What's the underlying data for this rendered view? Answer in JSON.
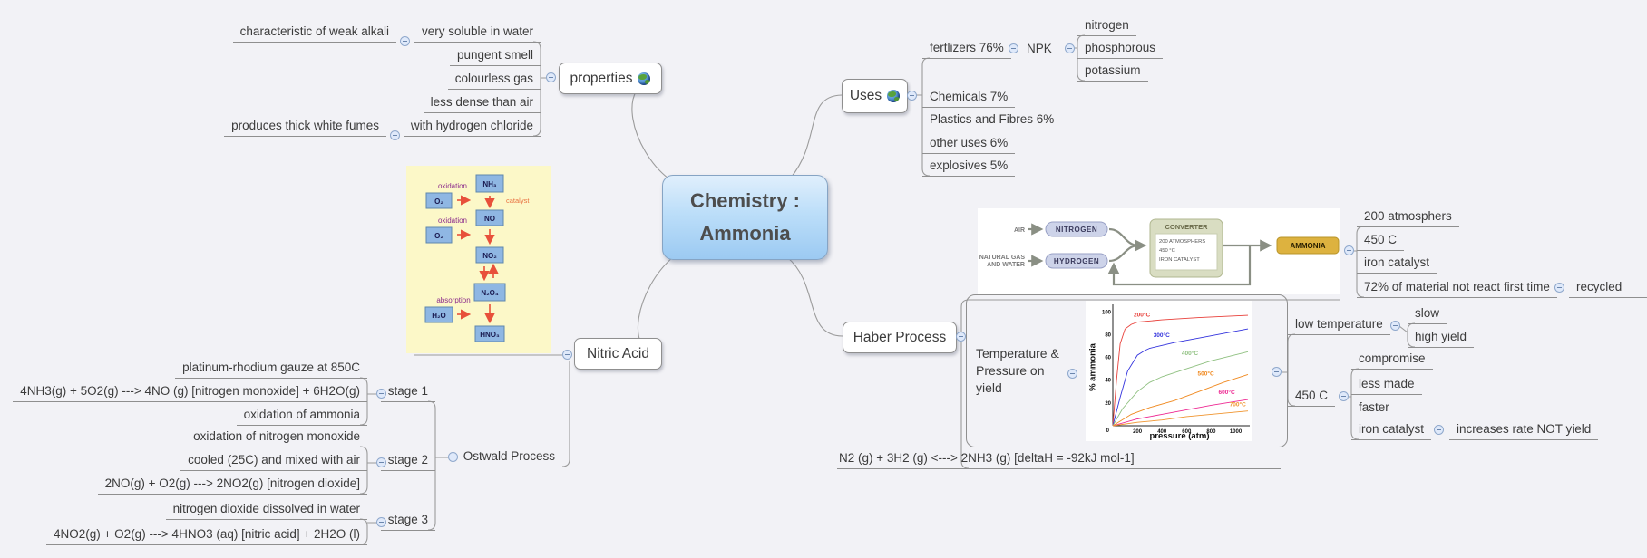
{
  "central": {
    "title": "Chemistry :\nAmmonia"
  },
  "properties": {
    "label": "properties",
    "children": [
      {
        "label": "very soluble in water",
        "note": {
          "label": "characteristic of weak alkali"
        }
      },
      {
        "label": "pungent smell"
      },
      {
        "label": "colourless gas"
      },
      {
        "label": "less dense than air"
      },
      {
        "label": "with hydrogen chloride",
        "note": {
          "label": "produces thick white fumes"
        }
      }
    ]
  },
  "uses": {
    "label": "Uses",
    "children": [
      {
        "label": "fertlizers 76%",
        "child": {
          "label": "NPK",
          "children": [
            {
              "label": "nitrogen"
            },
            {
              "label": "phosphorous"
            },
            {
              "label": "potassium"
            }
          ]
        }
      },
      {
        "label": "Chemicals 7%"
      },
      {
        "label": "Plastics and Fibres 6%"
      },
      {
        "label": "other uses 6%"
      },
      {
        "label": "explosives 5%"
      }
    ]
  },
  "nitric": {
    "label": "Nitric Acid",
    "diagram": {
      "nh3": "NH₃",
      "o2_top": "O₂",
      "no": "NO",
      "o2_mid": "O₂",
      "no2": "NO₂",
      "n2o4": "N₂O₄",
      "h2o": "H₂O",
      "hno3": "HNO₃",
      "oxidation_top": "oxidation",
      "oxidation_mid": "oxidation",
      "absorption": "absorption",
      "catalyst": "catalyst"
    },
    "ostwald": {
      "label": "Ostwald Process",
      "stages": [
        {
          "label": "stage 1",
          "children": [
            {
              "label": "platinum-rhodium gauze at 850C"
            },
            {
              "label": "4NH3(g) + 5O2(g) ---> 4NO (g) [nitrogen monoxide] + 6H2O(g)"
            },
            {
              "label": "oxidation of ammonia"
            }
          ]
        },
        {
          "label": "stage 2",
          "children": [
            {
              "label": "oxidation of nitrogen monoxide"
            },
            {
              "label": "cooled (25C) and mixed with air"
            },
            {
              "label": "2NO(g) + O2(g) ---> 2NO2(g) [nitrogen dioxide]"
            }
          ]
        },
        {
          "label": "stage 3",
          "children": [
            {
              "label": "nitrogen dioxide dissolved in water"
            },
            {
              "label": "4NO2(g) + O2(g) ---> 4HNO3 (aq) [nitric acid] + 2H2O (l)"
            }
          ]
        }
      ]
    }
  },
  "haber": {
    "label": "Haber Process",
    "converter_diagram": {
      "air": "AIR",
      "natural_gas_line1": "NATURAL GAS",
      "natural_gas_line2": "AND WATER",
      "nitrogen": "NITROGEN",
      "hydrogen": "HYDROGEN",
      "converter": "CONVERTER",
      "conditions": [
        "200 ATMOSPHERS",
        "450 °C",
        "IRON CATALYST"
      ],
      "ammonia": "AMMONIA"
    },
    "conditions": [
      {
        "label": "200 atmosphers"
      },
      {
        "label": "450 C"
      },
      {
        "label": "iron catalyst"
      },
      {
        "label": "72% of material not react first time",
        "child": {
          "label": "recycled"
        }
      }
    ],
    "temperature": {
      "label": "Temperature &\n Pressure on\nyield"
    },
    "equation": {
      "label": "N2 (g) + 3H2 (g) <---> 2NH3 (g) [deltaH = -92kJ mol-1]"
    },
    "analysis": [
      {
        "label": "low temperature",
        "children": [
          {
            "label": "slow"
          },
          {
            "label": "high yield"
          }
        ]
      },
      {
        "label": "450 C",
        "children": [
          {
            "label": "compromise"
          },
          {
            "label": "less made"
          },
          {
            "label": "faster"
          },
          {
            "label": "iron catalyst",
            "child": {
              "label": "increases rate NOT yield"
            }
          }
        ]
      }
    ]
  },
  "chart_data": {
    "type": "line",
    "title": "",
    "xlabel": "pressure (atm)",
    "ylabel": "% ammonia",
    "origin_label": "0",
    "xlim": [
      0,
      1100
    ],
    "ylim": [
      0,
      105
    ],
    "xticks": [
      200,
      400,
      600,
      800,
      1000
    ],
    "yticks": [
      20,
      40,
      60,
      80,
      100
    ],
    "grid": false,
    "legend": "labels-on-curves",
    "series": [
      {
        "name": "200°C",
        "color": "#e8403a",
        "label_xy": [
          170,
          96
        ],
        "points": [
          [
            0,
            0
          ],
          [
            30,
            40
          ],
          [
            60,
            72
          ],
          [
            100,
            85
          ],
          [
            150,
            89
          ],
          [
            200,
            91
          ],
          [
            400,
            93
          ],
          [
            700,
            95
          ],
          [
            1100,
            97
          ]
        ]
      },
      {
        "name": "300°C",
        "color": "#3333dd",
        "label_xy": [
          330,
          78
        ],
        "points": [
          [
            0,
            0
          ],
          [
            60,
            25
          ],
          [
            120,
            48
          ],
          [
            200,
            62
          ],
          [
            260,
            66
          ],
          [
            300,
            68
          ],
          [
            500,
            73
          ],
          [
            800,
            79
          ],
          [
            1100,
            85
          ]
        ]
      },
      {
        "name": "400°C",
        "color": "#8fc080",
        "label_xy": [
          560,
          62
        ],
        "points": [
          [
            0,
            0
          ],
          [
            80,
            15
          ],
          [
            200,
            30
          ],
          [
            300,
            38
          ],
          [
            400,
            43
          ],
          [
            600,
            50
          ],
          [
            800,
            57
          ],
          [
            1100,
            65
          ]
        ]
      },
      {
        "name": "500°C",
        "color": "#f0891f",
        "label_xy": [
          690,
          44
        ],
        "points": [
          [
            0,
            0
          ],
          [
            150,
            10
          ],
          [
            300,
            16
          ],
          [
            500,
            22
          ],
          [
            700,
            30
          ],
          [
            900,
            38
          ],
          [
            1100,
            45
          ]
        ]
      },
      {
        "name": "600°C",
        "color": "#ee2a93",
        "label_xy": [
          860,
          28
        ],
        "points": [
          [
            0,
            0
          ],
          [
            200,
            6
          ],
          [
            400,
            10
          ],
          [
            600,
            14
          ],
          [
            800,
            18
          ],
          [
            1100,
            23
          ]
        ]
      },
      {
        "name": "700°C",
        "color": "#f0952f",
        "label_xy": [
          950,
          17
        ],
        "points": [
          [
            0,
            0
          ],
          [
            200,
            3
          ],
          [
            400,
            5
          ],
          [
            600,
            8
          ],
          [
            800,
            10
          ],
          [
            1100,
            13
          ]
        ]
      }
    ]
  }
}
